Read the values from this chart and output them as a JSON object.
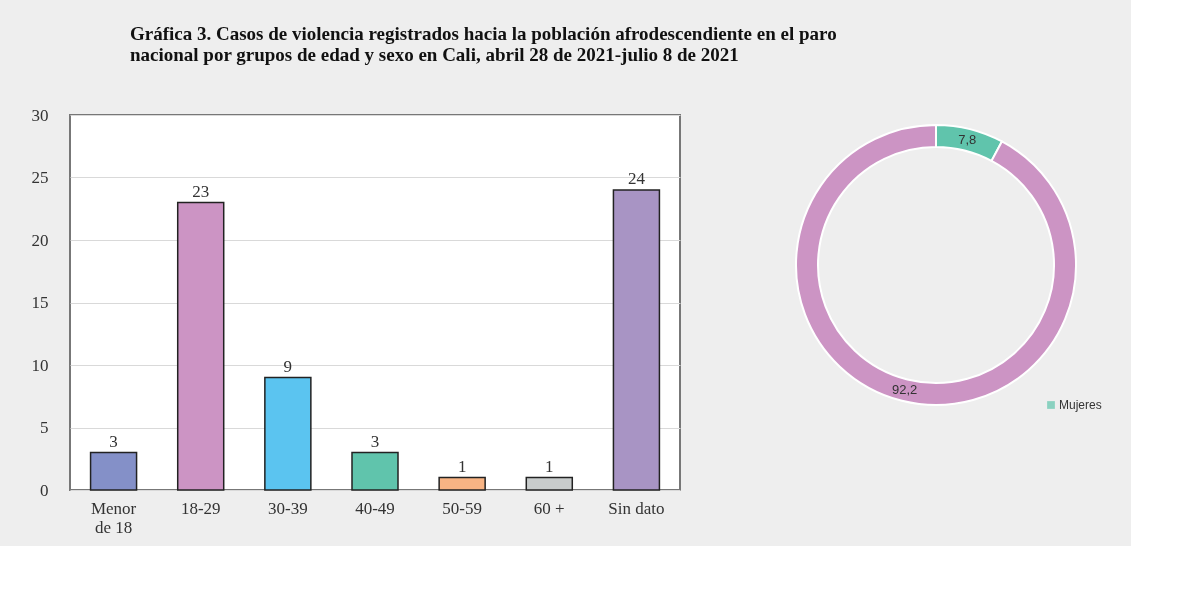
{
  "chart_data": [
    {
      "type": "bar",
      "title": "Gráfica 3. Casos de violencia registrados hacia la población afrodescendiente en el paro\nnacional por grupos de edad y sexo en Cali, abril 28 de 2021-julio 8 de 2021",
      "categories": [
        "Menor\nde 18",
        "18-29",
        "30-39",
        "40-49",
        "50-59",
        "60 +",
        "Sin dato"
      ],
      "values": [
        3,
        23,
        9,
        3,
        1,
        1,
        24
      ],
      "colors": [
        "#8490c8",
        "#cc94c4",
        "#5bc4f0",
        "#60c4ac",
        "#f8b484",
        "#c8cccc",
        "#a894c4"
      ],
      "ylim": [
        0,
        30
      ],
      "yticks": [
        0,
        5,
        10,
        15,
        20,
        25,
        30
      ],
      "grid": "y",
      "data_labels": true
    },
    {
      "type": "donut",
      "categories": [
        "Mujeres",
        null
      ],
      "values": [
        7.8,
        92.2
      ],
      "colors": [
        "#60c4ac",
        "#cc94c4"
      ],
      "value_labels": [
        "7,8",
        "92,2"
      ],
      "legend": "bottom right"
    }
  ]
}
